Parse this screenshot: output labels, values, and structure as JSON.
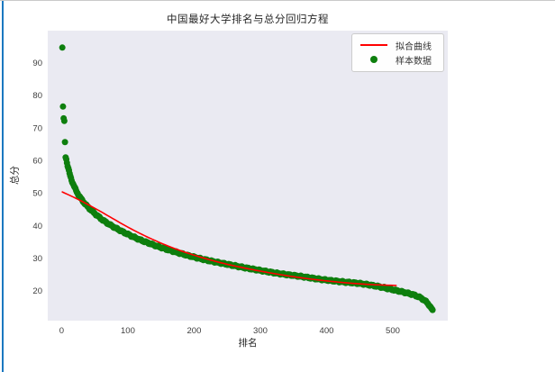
{
  "window": {
    "left_edge_color": "#1b78c0"
  },
  "chart_data": {
    "type": "scatter",
    "title": "中国最好大学排名与总分回归方程",
    "xlabel": "排名",
    "ylabel": "总分",
    "xlim": [
      -21,
      583
    ],
    "ylim": [
      10.8,
      99.8
    ],
    "x_ticks": [
      0,
      100,
      200,
      300,
      400,
      500
    ],
    "y_ticks": [
      20,
      30,
      40,
      50,
      60,
      70,
      80,
      90
    ],
    "grid": false,
    "plot_bg": "#eaeaf2",
    "text_color": "#3d3d3d",
    "legend_position": "upper right",
    "legend": [
      {
        "label": "拟合曲线",
        "type": "line",
        "color": "#ff0000"
      },
      {
        "label": "样本数据",
        "type": "dot",
        "color": "#0e7f0e"
      }
    ],
    "series": [
      {
        "name": "样本数据",
        "type": "scatter",
        "color": "#0e7f0e",
        "marker_radius": 3.5,
        "x_range": [
          1,
          560
        ],
        "interpolation": "pchip",
        "points": [
          [
            1,
            94.6
          ],
          [
            2,
            76.5
          ],
          [
            3,
            72.9
          ],
          [
            4,
            72.1
          ],
          [
            5,
            65.6
          ],
          [
            6,
            60.9
          ],
          [
            7,
            60.3
          ],
          [
            8,
            59.2
          ],
          [
            9,
            58.3
          ],
          [
            10,
            57.5
          ],
          [
            12,
            55.9
          ],
          [
            14,
            54.6
          ],
          [
            16,
            53.4
          ],
          [
            18,
            52.4
          ],
          [
            20,
            51.5
          ],
          [
            24,
            49.9
          ],
          [
            28,
            48.6
          ],
          [
            32,
            47.5
          ],
          [
            36,
            46.5
          ],
          [
            40,
            45.6
          ],
          [
            45,
            44.6
          ],
          [
            50,
            43.7
          ],
          [
            60,
            42.0
          ],
          [
            70,
            40.6
          ],
          [
            80,
            39.4
          ],
          [
            90,
            38.3
          ],
          [
            100,
            37.3
          ],
          [
            115,
            35.9
          ],
          [
            130,
            34.7
          ],
          [
            145,
            33.6
          ],
          [
            160,
            32.6
          ],
          [
            180,
            31.4
          ],
          [
            200,
            30.3
          ],
          [
            225,
            29.1
          ],
          [
            250,
            28.1
          ],
          [
            275,
            27.1
          ],
          [
            300,
            26.2
          ],
          [
            330,
            25.2
          ],
          [
            360,
            24.4
          ],
          [
            390,
            23.5
          ],
          [
            420,
            22.8
          ],
          [
            450,
            22.2
          ],
          [
            475,
            21.4
          ],
          [
            500,
            20.3
          ],
          [
            515,
            19.6
          ],
          [
            530,
            18.8
          ],
          [
            540,
            18.0
          ],
          [
            548,
            17.0
          ],
          [
            554,
            15.8
          ],
          [
            558,
            14.6
          ],
          [
            560,
            13.9
          ]
        ]
      },
      {
        "name": "拟合曲线",
        "type": "line",
        "color": "#ff0000",
        "stroke_width": 1.6,
        "x_range": [
          1,
          505
        ],
        "points": [
          [
            1,
            50.3
          ],
          [
            25,
            48.0
          ],
          [
            50,
            45.3
          ],
          [
            75,
            42.4
          ],
          [
            100,
            39.5
          ],
          [
            125,
            36.9
          ],
          [
            150,
            34.6
          ],
          [
            175,
            32.6
          ],
          [
            200,
            30.9
          ],
          [
            225,
            29.4
          ],
          [
            250,
            28.1
          ],
          [
            275,
            27.0
          ],
          [
            300,
            26.0
          ],
          [
            325,
            25.1
          ],
          [
            350,
            24.3
          ],
          [
            375,
            23.6
          ],
          [
            400,
            23.0
          ],
          [
            425,
            22.5
          ],
          [
            450,
            22.1
          ],
          [
            475,
            21.8
          ],
          [
            490,
            21.7
          ],
          [
            505,
            21.6
          ]
        ]
      }
    ]
  }
}
